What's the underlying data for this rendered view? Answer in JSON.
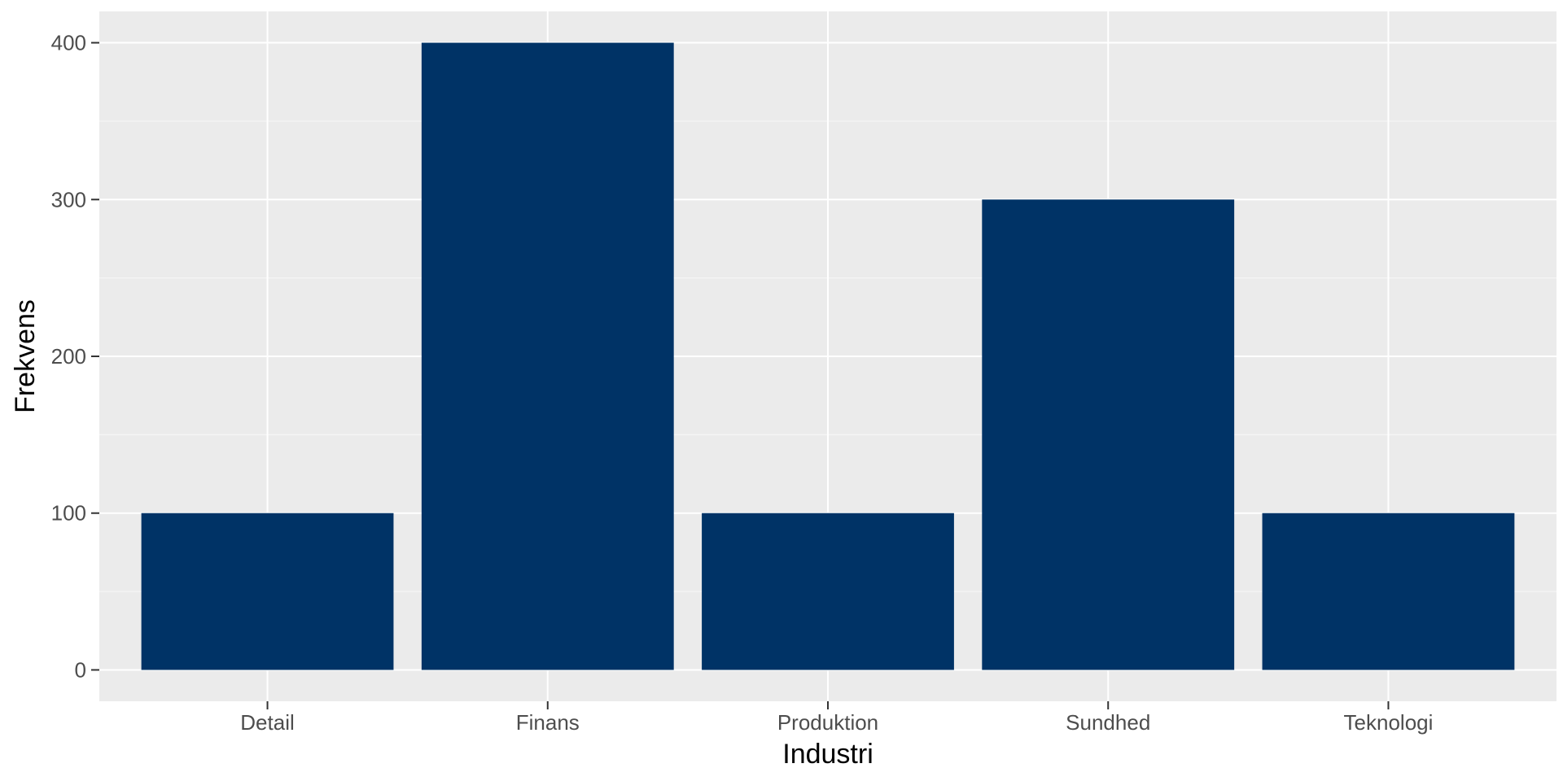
{
  "chart_data": {
    "type": "bar",
    "categories": [
      "Detail",
      "Finans",
      "Produktion",
      "Sundhed",
      "Teknologi"
    ],
    "values": [
      100,
      400,
      100,
      300,
      100
    ],
    "xlabel": "Industri",
    "ylabel": "Frekvens",
    "ylim": [
      -20,
      420
    ],
    "yticks": [
      0,
      100,
      200,
      300,
      400
    ],
    "ytick_labels": [
      "0",
      "100",
      "200",
      "300",
      "400"
    ],
    "grid": true,
    "legend": "none",
    "colors": {
      "bar": "#003366",
      "panel": "#EBEBEB",
      "grid_major": "#FFFFFF",
      "grid_minor": "#F5F5F5",
      "tick": "#333333"
    }
  }
}
